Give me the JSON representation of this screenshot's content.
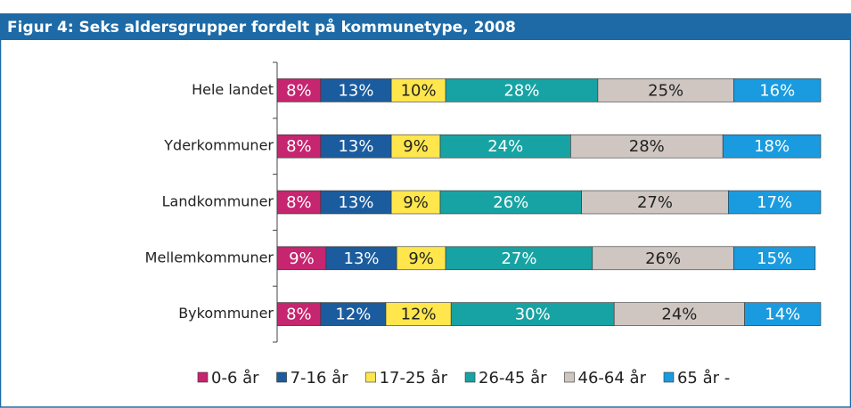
{
  "chart_data": {
    "type": "stacked_barh",
    "title": "Figur 4: Seks aldersgrupper fordelt på kommunetype, 2008",
    "categories": [
      "Hele landet",
      "Yderkommuner",
      "Landkommuner",
      "Mellemkommuner",
      "Bykommuner"
    ],
    "xlim": [
      0,
      100
    ],
    "legend": "bottom",
    "series": [
      {
        "name": "0-6 år",
        "color": "#c6256f",
        "values": [
          8,
          8,
          8,
          9,
          8
        ],
        "value_labels": [
          "8%",
          "8%",
          "8%",
          "9%",
          "8%"
        ]
      },
      {
        "name": "7-16 år",
        "color": "#1b5c9e",
        "values": [
          13,
          13,
          13,
          13,
          12
        ],
        "value_labels": [
          "13%",
          "13%",
          "13%",
          "13%",
          "12%"
        ]
      },
      {
        "name": "17-25 år",
        "color": "#ffe64d",
        "values": [
          10,
          9,
          9,
          9,
          12
        ],
        "value_labels": [
          "10%",
          "9%",
          "9%",
          "9%",
          "12%"
        ]
      },
      {
        "name": "26-45 år",
        "color": "#17a3a3",
        "values": [
          28,
          24,
          26,
          27,
          30
        ],
        "value_labels": [
          "28%",
          "24%",
          "26%",
          "27%",
          "30%"
        ]
      },
      {
        "name": "46-64 år",
        "color": "#cfc6c2",
        "values": [
          25,
          28,
          27,
          26,
          24
        ],
        "value_labels": [
          "25%",
          "28%",
          "27%",
          "26%",
          "24%"
        ]
      },
      {
        "name": "65 år -",
        "color": "#1a9be0",
        "values": [
          16,
          18,
          17,
          15,
          14
        ],
        "value_labels": [
          "16%",
          "18%",
          "17%",
          "15%",
          "14%"
        ]
      }
    ]
  }
}
